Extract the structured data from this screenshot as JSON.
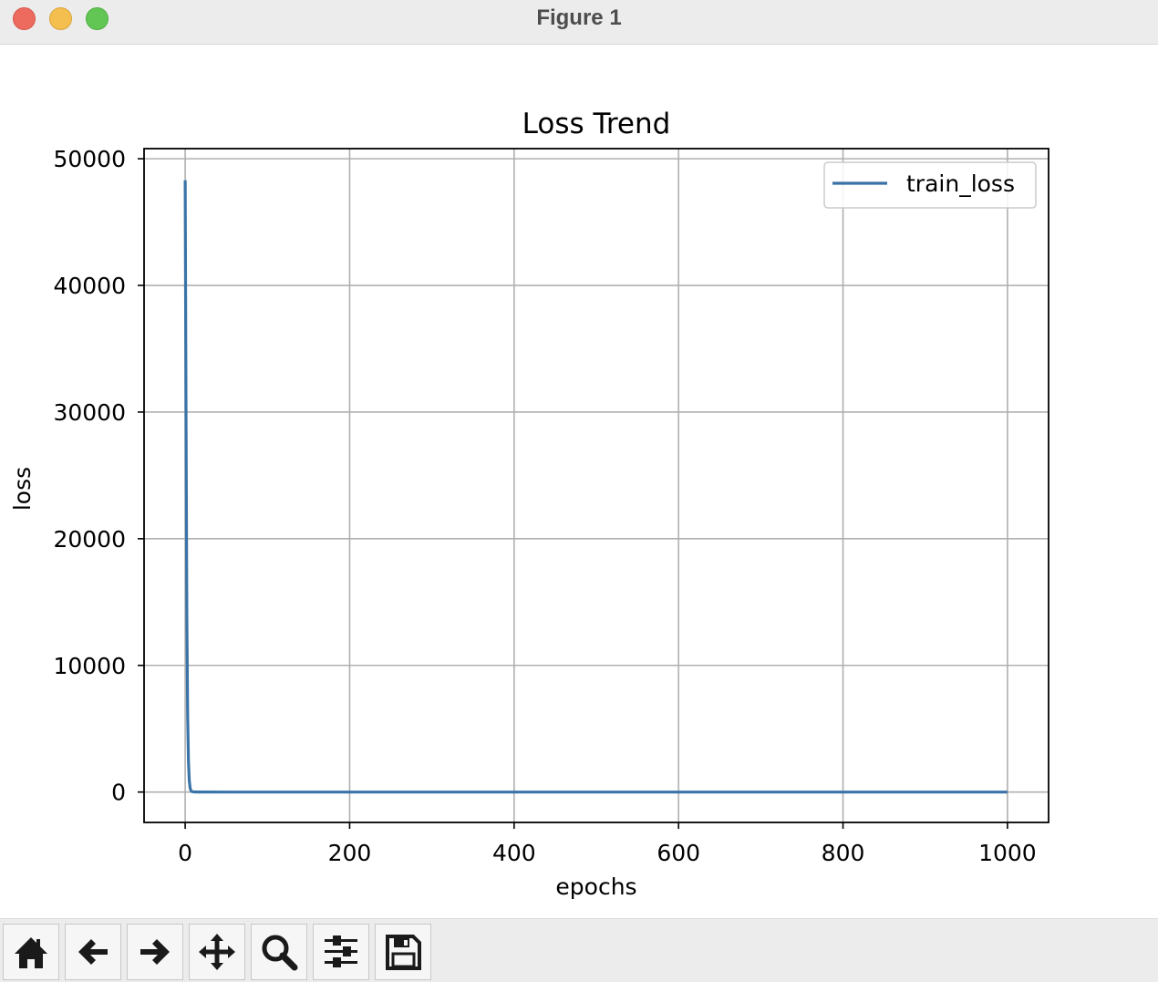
{
  "window": {
    "title": "Figure 1"
  },
  "chart_data": {
    "type": "line",
    "title": "Loss Trend",
    "xlabel": "epochs",
    "ylabel": "loss",
    "xlim": [
      -50,
      1050
    ],
    "ylim": [
      -2400,
      50800
    ],
    "xticks": [
      0,
      200,
      400,
      600,
      800,
      1000
    ],
    "yticks": [
      0,
      10000,
      20000,
      30000,
      40000,
      50000
    ],
    "grid": true,
    "legend_position": "top-right",
    "line_color": "#3a73a7",
    "series": [
      {
        "name": "train_loss",
        "x": [
          0,
          1,
          2,
          3,
          4,
          5,
          6,
          7,
          8,
          10,
          15,
          20,
          50,
          100,
          200,
          400,
          600,
          800,
          1000
        ],
        "y": [
          48300,
          30000,
          14000,
          6000,
          2400,
          900,
          320,
          110,
          40,
          10,
          3,
          1,
          0,
          0,
          0,
          0,
          0,
          0,
          0
        ]
      }
    ]
  },
  "toolbar": {
    "buttons": [
      {
        "name": "home",
        "icon": "home-icon"
      },
      {
        "name": "back",
        "icon": "arrow-left-icon"
      },
      {
        "name": "forward",
        "icon": "arrow-right-icon"
      },
      {
        "name": "pan",
        "icon": "move-icon"
      },
      {
        "name": "zoom",
        "icon": "magnifier-icon"
      },
      {
        "name": "configure",
        "icon": "sliders-icon"
      },
      {
        "name": "save",
        "icon": "floppy-disk-icon"
      }
    ]
  }
}
